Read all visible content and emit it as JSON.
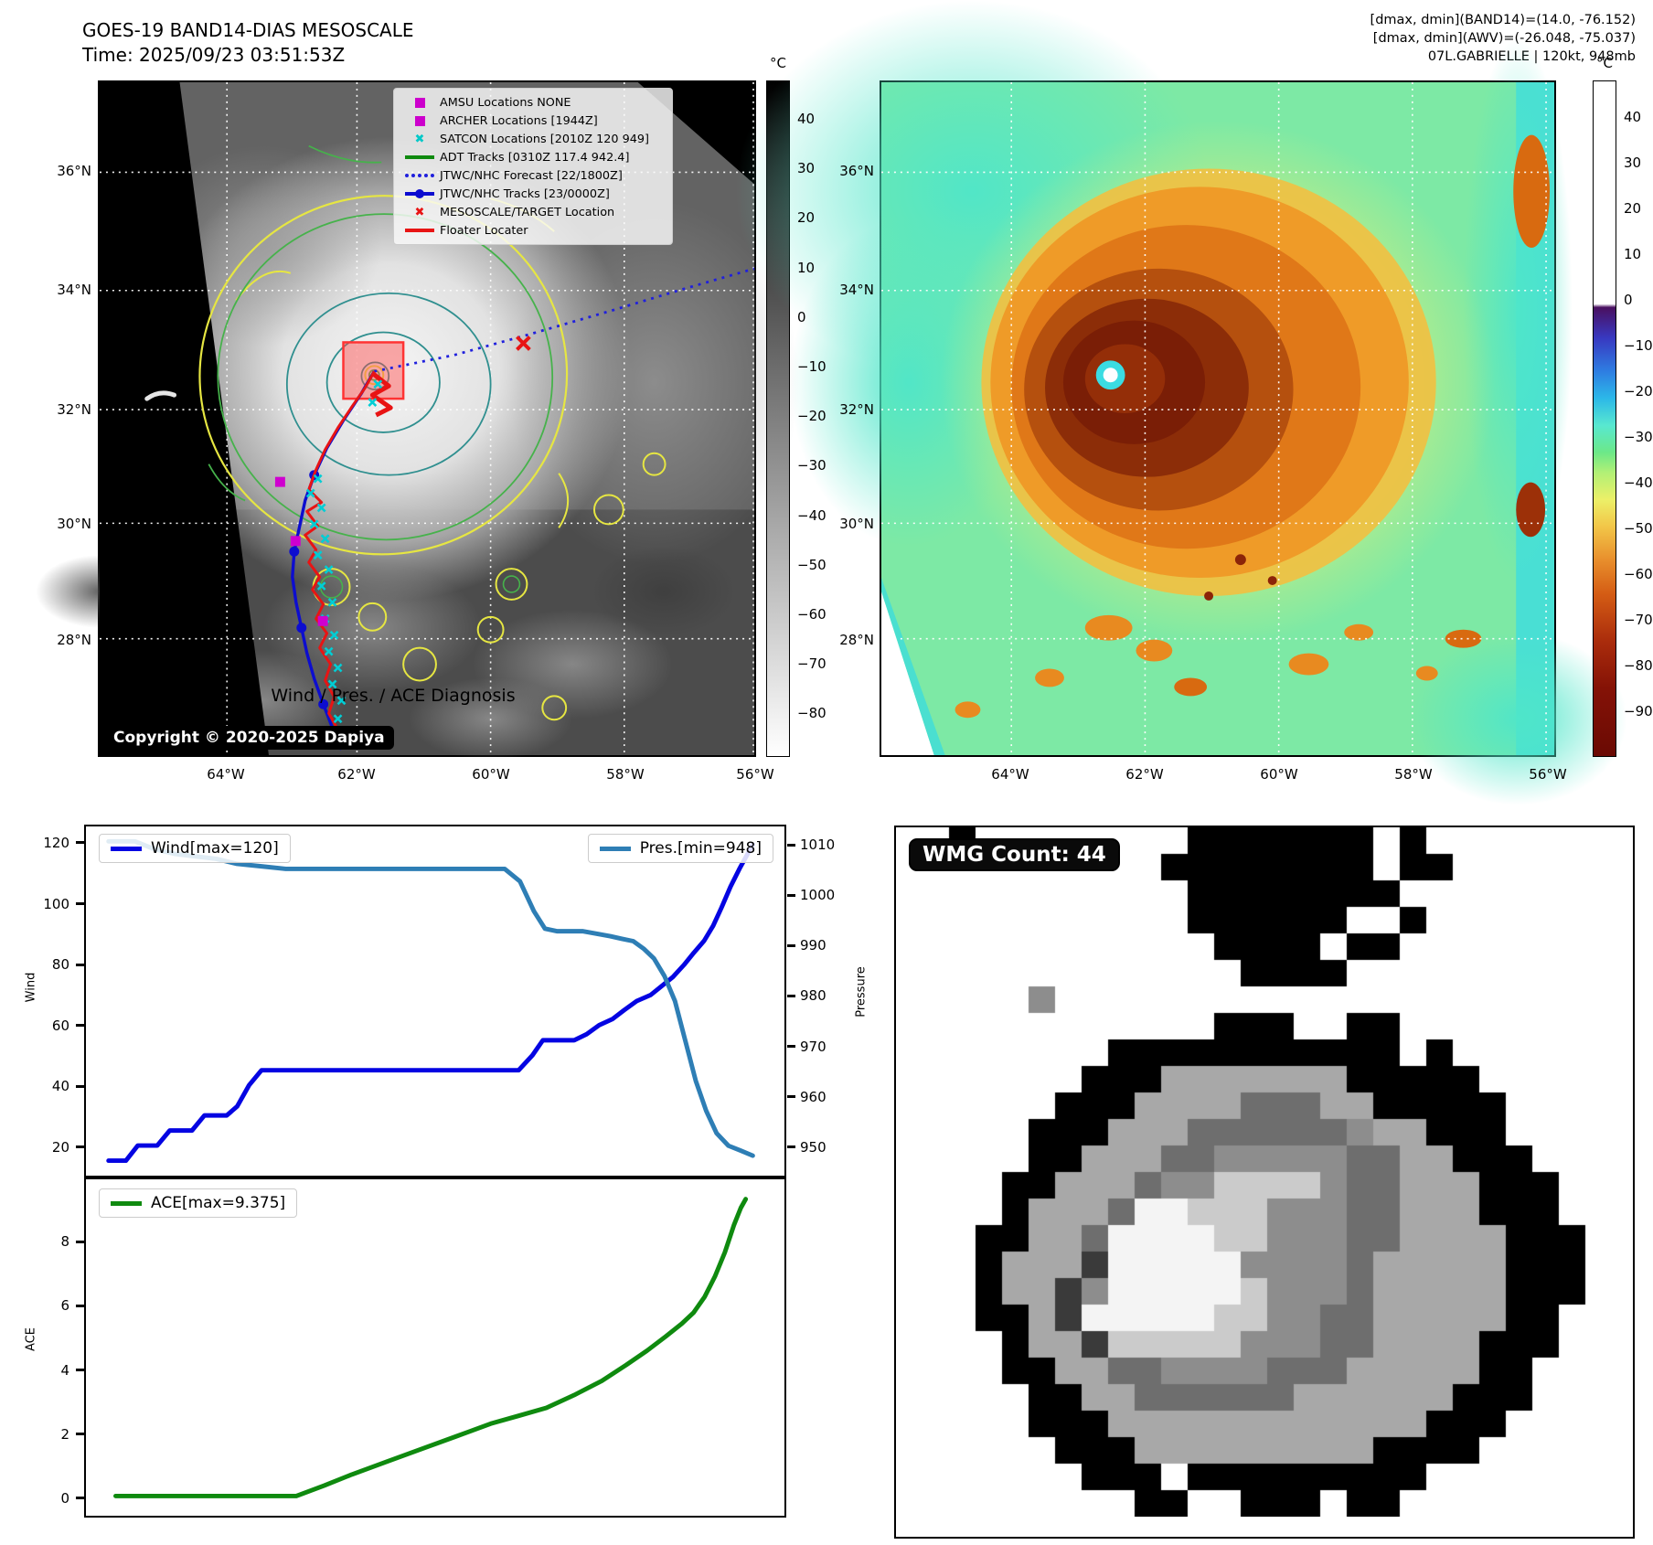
{
  "header": {
    "title": "GOES-19 BAND14-DIAS MESOSCALE",
    "time": "Time: 2025/09/23 03:51:53Z",
    "right_lines": [
      "[dmax, dmin](BAND14)=(14.0, -76.152)",
      "[dmax, dmin](AWV)=(-26.048, -75.037)",
      "07L.GABRIELLE | 120kt, 948mb"
    ]
  },
  "left_map": {
    "x_ticks": [
      "64°W",
      "62°W",
      "60°W",
      "58°W",
      "56°W"
    ],
    "y_ticks": [
      "36°N",
      "34°N",
      "32°N",
      "30°N",
      "28°N"
    ],
    "colorbar": {
      "unit": "°C",
      "ticks": [
        40,
        30,
        20,
        10,
        0,
        -10,
        -20,
        -30,
        -40,
        -50,
        -60,
        -70,
        -80
      ]
    },
    "copyright": "Copyright © 2020-2025 Dapiya",
    "legend": [
      {
        "symbol": "square",
        "color": "#cc00cc",
        "label": "AMSU Locations NONE"
      },
      {
        "symbol": "square",
        "color": "#cc00cc",
        "label": "ARCHER Locations [1944Z]"
      },
      {
        "symbol": "x",
        "color": "#00c8c8",
        "label": "SATCON Locations [2010Z 120 949]"
      },
      {
        "symbol": "line",
        "color": "#0f8a0f",
        "label": "ADT Tracks [0310Z 117.4 942.4]"
      },
      {
        "symbol": "dotted",
        "color": "#2020dd",
        "label": "JTWC/NHC Forecast [22/1800Z]"
      },
      {
        "symbol": "line-dot",
        "color": "#0d0dcf",
        "label": "JTWC/NHC Tracks [23/0000Z]"
      },
      {
        "symbol": "x",
        "color": "#e81414",
        "label": "MESOSCALE/TARGET Location"
      },
      {
        "symbol": "line",
        "color": "#e81414",
        "label": "Floater Locater"
      }
    ]
  },
  "right_map": {
    "x_ticks": [
      "64°W",
      "62°W",
      "60°W",
      "58°W",
      "56°W"
    ],
    "y_ticks": [
      "36°N",
      "34°N",
      "32°N",
      "30°N",
      "28°N"
    ],
    "colorbar": {
      "unit": "°C",
      "ticks": [
        40,
        30,
        20,
        10,
        0,
        -10,
        -20,
        -30,
        -40,
        -50,
        -60,
        -70,
        -80,
        -90
      ]
    }
  },
  "charts": {
    "title": "Wind / Pres. / ACE Diagnosis",
    "wind_legend": "Wind[max=120]",
    "pres_legend": "Pres.[min=948]",
    "ace_legend": "ACE[max=9.375]",
    "wind_axis_label": "Wind",
    "pressure_axis_label": "Pressure",
    "ace_axis_label": "ACE"
  },
  "chart_data": {
    "type": "line",
    "title": "Wind / Pres. / ACE Diagnosis",
    "panels": [
      {
        "id": "wind_pres",
        "left_axis": {
          "label": "Wind",
          "ticks": [
            20,
            40,
            60,
            80,
            100,
            120
          ],
          "range": [
            10,
            126
          ]
        },
        "right_axis": {
          "label": "Pressure",
          "ticks": [
            950,
            960,
            970,
            980,
            990,
            1000,
            1010
          ],
          "range": [
            944,
            1014
          ]
        },
        "series": [
          {
            "name": "Wind[max=120]",
            "axis": "left",
            "color": "#0404e2",
            "x": [
              0.03,
              0.055,
              0.072,
              0.1,
              0.118,
              0.15,
              0.168,
              0.2,
              0.215,
              0.232,
              0.25,
              0.62,
              0.64,
              0.655,
              0.7,
              0.718,
              0.736,
              0.755,
              0.772,
              0.79,
              0.81,
              0.826,
              0.842,
              0.858,
              0.872,
              0.887,
              0.9,
              0.912,
              0.925,
              0.938,
              0.95,
              0.957
            ],
            "y": [
              15,
              15,
              20,
              20,
              25,
              25,
              30,
              30,
              33,
              40,
              45,
              45,
              50,
              55,
              55,
              57,
              60,
              62,
              65,
              68,
              70,
              73,
              76,
              80,
              84,
              88,
              93,
              99,
              106,
              112,
              117,
              120
            ]
          },
          {
            "name": "Pres.[min=948]",
            "axis": "right",
            "color": "#2e7eb5",
            "x": [
              0.03,
              0.068,
              0.095,
              0.125,
              0.155,
              0.185,
              0.215,
              0.25,
              0.285,
              0.32,
              0.6,
              0.622,
              0.642,
              0.658,
              0.675,
              0.712,
              0.732,
              0.752,
              0.768,
              0.785,
              0.8,
              0.815,
              0.83,
              0.845,
              0.86,
              0.875,
              0.89,
              0.905,
              0.922,
              0.94,
              0.957
            ],
            "y": [
              1011,
              1011,
              1009.5,
              1008.5,
              1008,
              1007.5,
              1006.5,
              1006,
              1005.5,
              1005.5,
              1005.5,
              1003,
              997,
              993.5,
              993,
              993,
              992.5,
              992,
              991.5,
              991,
              989.5,
              987.5,
              984,
              979,
              971,
              963,
              957,
              952.5,
              950,
              949,
              948
            ]
          }
        ]
      },
      {
        "id": "ace",
        "left_axis": {
          "label": "ACE",
          "ticks": [
            0,
            2,
            4,
            6,
            8
          ],
          "range": [
            -0.6,
            10.0
          ]
        },
        "series": [
          {
            "name": "ACE[max=9.375]",
            "axis": "left",
            "color": "#0f8a0f",
            "x": [
              0.04,
              0.1,
              0.18,
              0.25,
              0.3,
              0.34,
              0.38,
              0.43,
              0.48,
              0.53,
              0.58,
              0.62,
              0.66,
              0.7,
              0.74,
              0.775,
              0.805,
              0.832,
              0.855,
              0.872,
              0.888,
              0.903,
              0.917,
              0.93,
              0.94,
              0.947
            ],
            "y": [
              0.02,
              0.02,
              0.02,
              0.02,
              0.02,
              0.35,
              0.7,
              1.1,
              1.5,
              1.9,
              2.3,
              2.55,
              2.8,
              3.2,
              3.65,
              4.15,
              4.6,
              5.05,
              5.45,
              5.8,
              6.3,
              6.95,
              7.7,
              8.55,
              9.1,
              9.375
            ]
          }
        ]
      }
    ]
  },
  "wmg": {
    "label": "WMG Count: 44",
    "palette": {
      "K": "#000000",
      "S": "#a8a8a8",
      "G": "#8d8d8d",
      "D": "#6e6e6e",
      "d": "#3a3a3a",
      "L": "#cbcbcb",
      "W": "#f4f4f4"
    },
    "grid": [
      "..K........KKKKKKK.K........",
      "..........KKKKKKKK.KK.......",
      "...........KKKKKKKK.........",
      "...........KKKKKK..K........",
      "............KKKK.KK.........",
      ".............KKKK...........",
      ".....G......................",
      "............KKK..KK.........",
      "........KKKKKKKKKKK.K.......",
      ".......KKKSSSSSSSKKKKK......",
      "......KKKSSSSDDDSSKKKKK.....",
      ".....KKKSSSDDDDDDGSSKKK.....",
      ".....KKSSSDDGGGGGDDSSKKK....",
      "....KKSSSDGGLLLLGDDSSSKKK...",
      "....KSSSDWWLLLGGGDDSSSKKK...",
      "...KKSSDWWWWLLGGGDDSSSSKKK..",
      "...KSSSdWWWWWGGGGDSSSSSKKK..",
      "...KSSdGWWWWWLGGGDSSSSSKKK..",
      "...KKSdWWWWWLLGGDDSSSSSKK...",
      "....KSSdLLLLLGGGDDSSSSKKK...",
      "....KKSSDDGGGGDDDSSSSSKK....",
      ".....KKSSDDDDDDSSSSSSKKK....",
      ".....KKKSSSSSSSSSSSSKKK.....",
      "......KKKSSSSSSSSSKKKK......",
      ".......KKK.KKKKKKKKK........",
      ".........KK..KKK.KK........."
    ]
  }
}
